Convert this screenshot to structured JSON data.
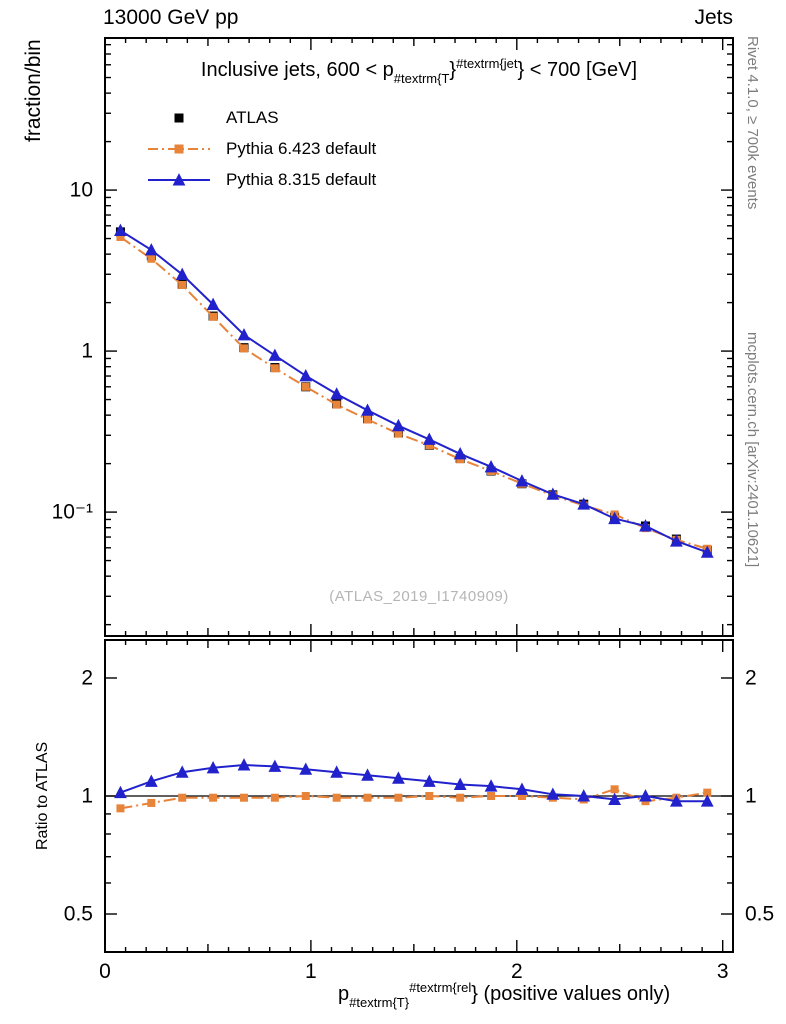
{
  "header": {
    "left": "13000 GeV pp",
    "right": "Jets"
  },
  "side_labels": {
    "top": "Rivet 4.1.0, ≥ 700k events",
    "bottom": "mcplots.cern.ch [arXiv:2401.10621]"
  },
  "top_panel": {
    "ylabel": "fraction/bin",
    "watermark": "(ATLAS_2019_I1740909)"
  },
  "bottom_panel": {
    "ylabel": "Ratio to ATLAS"
  },
  "title": {
    "pre": "Inclusive jets, 600 < p",
    "sub": "#textrm{T",
    "brace1": "}",
    "sup": "#textrm{jet",
    "brace2": "}",
    "post": " < 700 [GeV]"
  },
  "xlabel": {
    "pre": "p",
    "sub": "#textrm{T}",
    "sup": "#textrm{rel",
    "post": "} (positive values only)"
  },
  "legend": [
    {
      "label": "ATLAS",
      "marker": "square",
      "color": "#000000",
      "line": "none"
    },
    {
      "label": "Pythia 6.423 default",
      "marker": "square",
      "color": "#e8833a",
      "line": "dashdot"
    },
    {
      "label": "Pythia 8.315 default",
      "marker": "triangle",
      "color": "#2222cc",
      "line": "solid"
    }
  ],
  "colors": {
    "atlas": "#000000",
    "pythia6": "#e8833a",
    "pythia8": "#2222cc",
    "axis": "#000000",
    "watermark": "#b5b5b5",
    "side_text": "#7d7d7d"
  },
  "chart_data": [
    {
      "type": "line",
      "panel": "main",
      "title": "Inclusive jets, 600 < pT^jet < 700 [GeV]",
      "xlabel": "pT^rel (positive values only)",
      "ylabel": "fraction/bin",
      "yscale": "log",
      "xlim": [
        0,
        3.05
      ],
      "ylim": [
        0.017,
        88
      ],
      "grid": false,
      "legend_position": "top-left-inside",
      "xticks": [
        {
          "v": 0,
          "label": "0"
        },
        {
          "v": 1,
          "label": "1"
        },
        {
          "v": 2,
          "label": "2"
        },
        {
          "v": 3,
          "label": "3"
        }
      ],
      "yticks": [
        {
          "v": 10,
          "label": "10"
        },
        {
          "v": 1,
          "label": "1"
        },
        {
          "v": 0.1,
          "label": "10⁻¹"
        }
      ],
      "x": [
        0.075,
        0.225,
        0.375,
        0.525,
        0.675,
        0.825,
        0.975,
        1.125,
        1.275,
        1.425,
        1.575,
        1.725,
        1.875,
        2.025,
        2.175,
        2.325,
        2.475,
        2.625,
        2.775,
        2.925
      ],
      "series": [
        {
          "name": "ATLAS",
          "color": "#000000",
          "marker": "square",
          "line": "none",
          "values": [
            5.5,
            3.9,
            2.6,
            1.65,
            1.05,
            0.79,
            0.6,
            0.47,
            0.38,
            0.31,
            0.26,
            0.215,
            0.18,
            0.15,
            0.128,
            0.112,
            0.093,
            0.082,
            0.068,
            0.058
          ]
        },
        {
          "name": "Pythia 6.423 default",
          "color": "#e8833a",
          "marker": "square",
          "line": "dashdot",
          "values": [
            5.115,
            3.744,
            2.574,
            1.634,
            1.04,
            0.782,
            0.6,
            0.465,
            0.376,
            0.307,
            0.26,
            0.213,
            0.18,
            0.15,
            0.127,
            0.11,
            0.0967,
            0.0795,
            0.0673,
            0.0592
          ]
        },
        {
          "name": "Pythia 8.315 default",
          "color": "#2222cc",
          "marker": "triangle",
          "line": "solid",
          "values": [
            5.61,
            4.251,
            2.99,
            1.947,
            1.26,
            0.94,
            0.702,
            0.541,
            0.429,
            0.344,
            0.283,
            0.23,
            0.191,
            0.156,
            0.129,
            0.112,
            0.0911,
            0.082,
            0.066,
            0.0563
          ]
        }
      ]
    },
    {
      "type": "line",
      "panel": "ratio",
      "ylabel": "Ratio to ATLAS",
      "yscale": "log",
      "xlim": [
        0,
        3.05
      ],
      "ylim": [
        0.4,
        2.5
      ],
      "grid": false,
      "reference_line": 1,
      "xticks": [
        {
          "v": 0,
          "label": "0"
        },
        {
          "v": 1,
          "label": "1"
        },
        {
          "v": 2,
          "label": "2"
        },
        {
          "v": 3,
          "label": "3"
        }
      ],
      "yticks": [
        {
          "v": 2,
          "label": "2"
        },
        {
          "v": 1,
          "label": "1"
        },
        {
          "v": 0.5,
          "label": "0.5"
        }
      ],
      "x": [
        0.075,
        0.225,
        0.375,
        0.525,
        0.675,
        0.825,
        0.975,
        1.125,
        1.275,
        1.425,
        1.575,
        1.725,
        1.875,
        2.025,
        2.175,
        2.325,
        2.475,
        2.625,
        2.775,
        2.925
      ],
      "series": [
        {
          "name": "Pythia 6.423 default",
          "color": "#e8833a",
          "marker": "square",
          "line": "dashdot",
          "values": [
            0.93,
            0.96,
            0.99,
            0.99,
            0.99,
            0.99,
            1.0,
            0.99,
            0.99,
            0.99,
            1.0,
            0.99,
            1.0,
            1.0,
            0.99,
            0.98,
            1.04,
            0.97,
            0.99,
            1.02
          ]
        },
        {
          "name": "Pythia 8.315 default",
          "color": "#2222cc",
          "marker": "triangle",
          "line": "solid",
          "values": [
            1.02,
            1.09,
            1.15,
            1.18,
            1.2,
            1.19,
            1.17,
            1.15,
            1.13,
            1.11,
            1.09,
            1.07,
            1.06,
            1.04,
            1.01,
            1.0,
            0.98,
            1.0,
            0.97,
            0.97
          ]
        }
      ]
    }
  ]
}
